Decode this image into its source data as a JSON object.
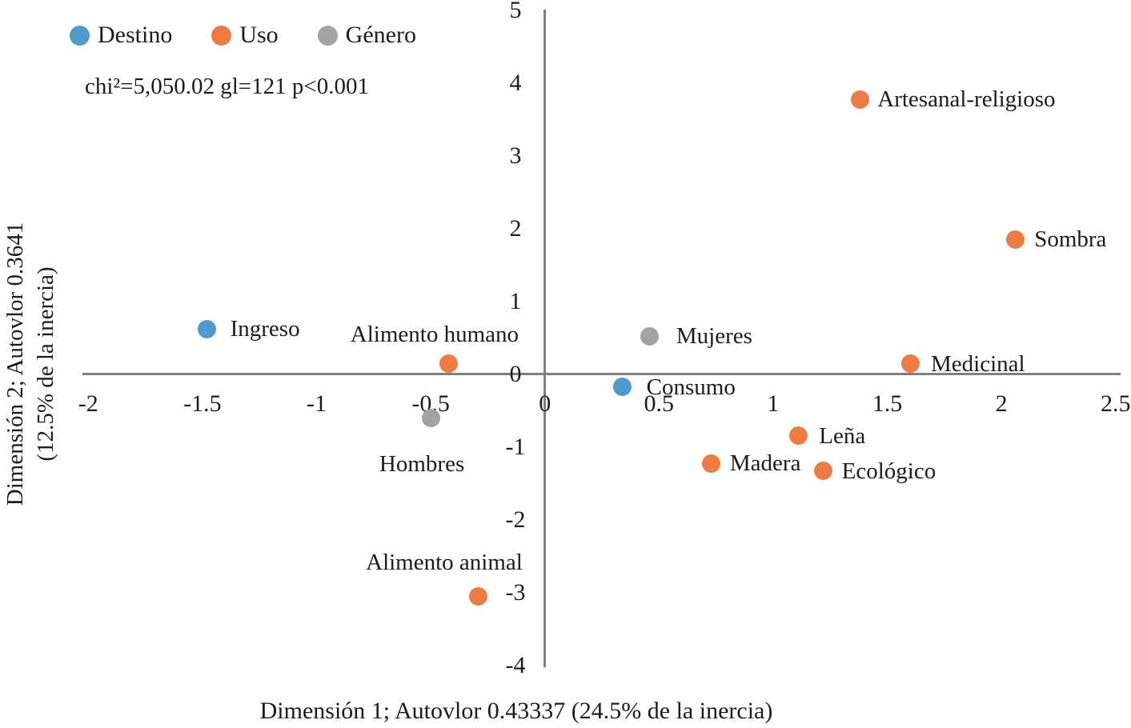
{
  "chart_data": {
    "type": "scatter",
    "annotation": "chi²=5,050.02 gl=121 p<0.001",
    "xlabel": "Dimensión 1; Autovlor 0.43337 (24.5% de la inercia)",
    "ylabel": "Dimensión 2; Autovlor 0.3641 (12.5% de la inercia)",
    "ylabel_line1": "Dimensión 2; Autovlor 0.3641",
    "ylabel_line2": "(12.5% de la inercia)",
    "xlim": [
      -2,
      2.5
    ],
    "ylim": [
      -4,
      5
    ],
    "x_ticks": [
      "-2",
      "-1.5",
      "-1",
      "-0.5",
      "0",
      "0.5",
      "1",
      "1.5",
      "2",
      "2.5"
    ],
    "y_ticks": [
      "5",
      "4",
      "3",
      "2",
      "1",
      "0",
      "-1",
      "-2",
      "-3",
      "-4"
    ],
    "grid": false,
    "legend_position": "top-left",
    "axis_color": "#7f7f7f",
    "text_color": "#1c1c1c",
    "series": [
      {
        "name": "Destino",
        "color": "#4e9bcb",
        "points": [
          {
            "label": "Ingreso",
            "x": -1.48,
            "y": 0.62,
            "label_anchor": "start",
            "label_dx": 29,
            "label_dy": 0
          },
          {
            "label": "Consumo",
            "x": 0.34,
            "y": -0.18,
            "label_anchor": "start",
            "label_dx": 30,
            "label_dy": 0
          }
        ]
      },
      {
        "name": "Uso",
        "color": "#ed7c43",
        "points": [
          {
            "label": "Artesanal-religioso",
            "x": 1.38,
            "y": 3.77,
            "label_anchor": "start",
            "label_dx": 22,
            "label_dy": 0
          },
          {
            "label": "Sombra",
            "x": 2.06,
            "y": 1.85,
            "label_anchor": "start",
            "label_dx": 24,
            "label_dy": 0
          },
          {
            "label": "Medicinal",
            "x": 1.6,
            "y": 0.14,
            "label_anchor": "start",
            "label_dx": 26,
            "label_dy": 0
          },
          {
            "label": "Alimento humano",
            "x": -0.42,
            "y": 0.14,
            "label_anchor": "middle",
            "label_dx": -18,
            "label_dy": -37
          },
          {
            "label": "Leña",
            "x": 1.11,
            "y": -0.85,
            "label_anchor": "start",
            "label_dx": 26,
            "label_dy": 0
          },
          {
            "label": "Madera",
            "x": 0.73,
            "y": -1.23,
            "label_anchor": "start",
            "label_dx": 23,
            "label_dy": 0
          },
          {
            "label": "Ecológico",
            "x": 1.22,
            "y": -1.33,
            "label_anchor": "start",
            "label_dx": 23,
            "label_dy": 0
          },
          {
            "label": "Alimento animal",
            "x": -0.29,
            "y": -3.06,
            "label_anchor": "middle",
            "label_dx": -43,
            "label_dy": -43
          }
        ]
      },
      {
        "name": "Género",
        "color": "#a3a3a3",
        "points": [
          {
            "label": "Mujeres",
            "x": 0.46,
            "y": 0.52,
            "label_anchor": "start",
            "label_dx": 33,
            "label_dy": 0
          },
          {
            "label": "Hombres",
            "x": -0.5,
            "y": -0.6,
            "label_anchor": "middle",
            "label_dx": -11,
            "label_dy": 58
          }
        ]
      }
    ]
  }
}
